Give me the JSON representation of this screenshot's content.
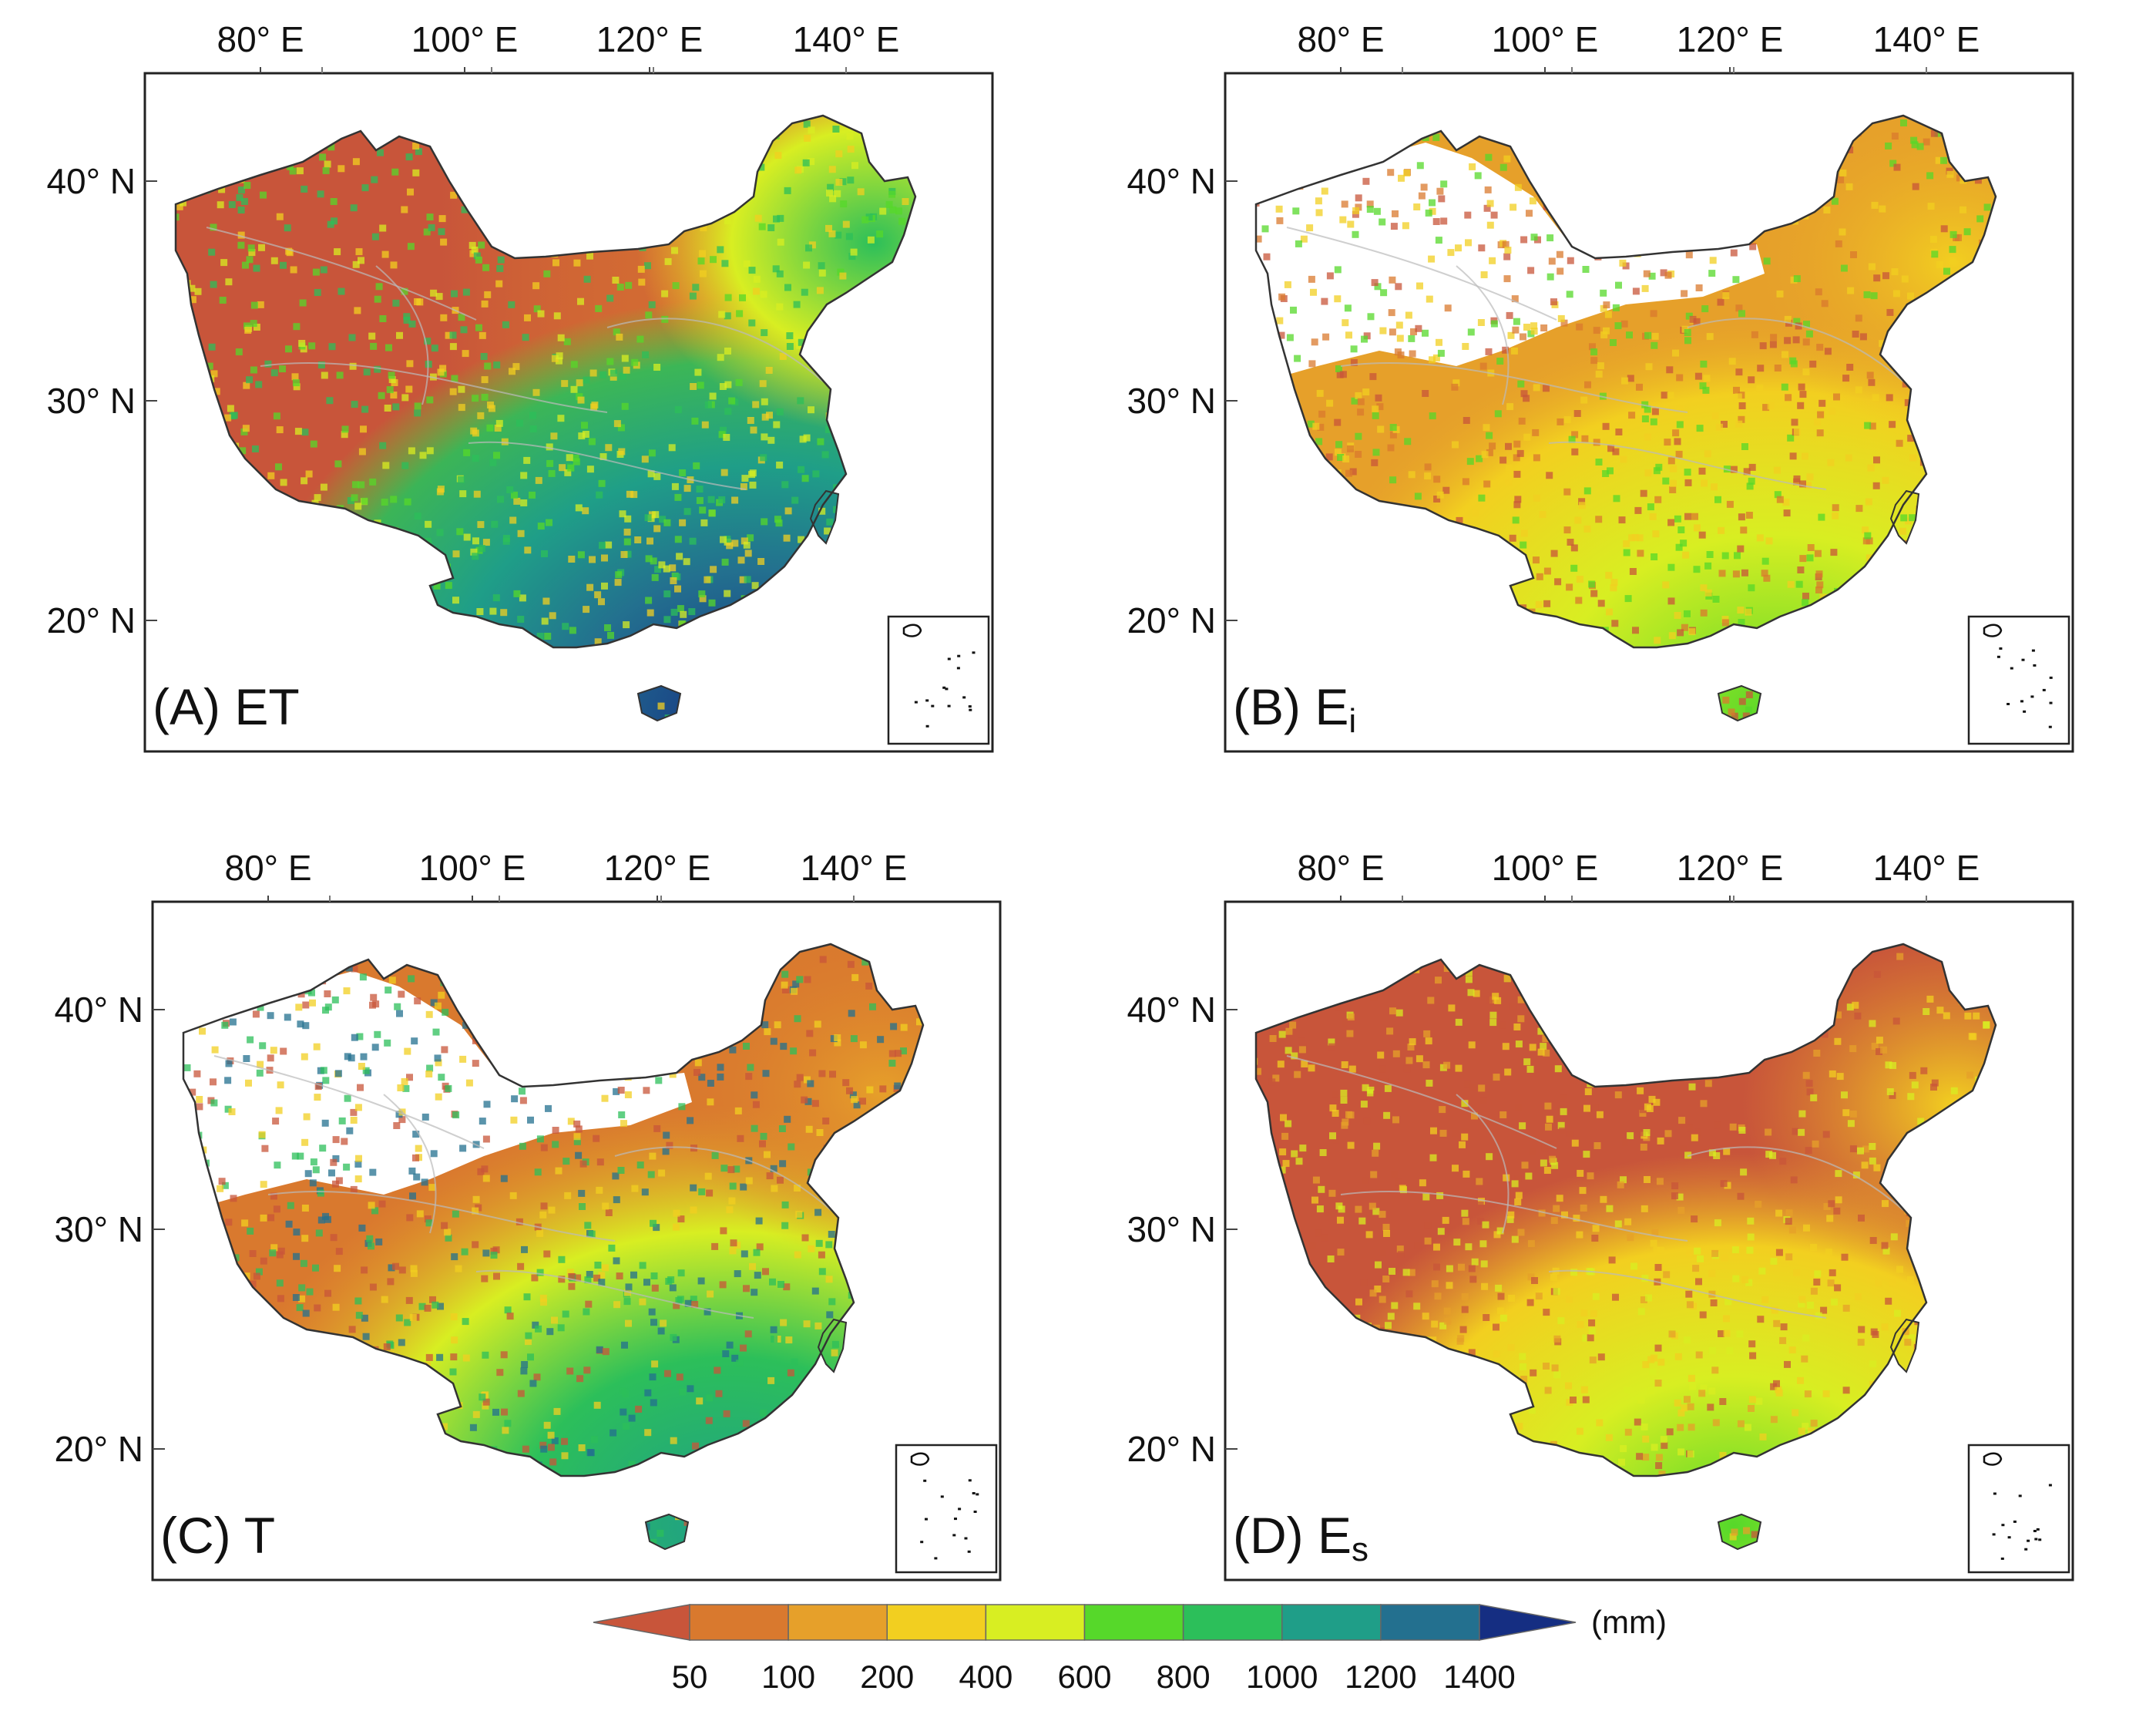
{
  "figure": {
    "lon_ticks": [
      "80° E",
      "100° E",
      "120° E",
      "140° E"
    ],
    "lat_ticks": [
      "40° N",
      "30° N",
      "20° N"
    ],
    "panels": [
      {
        "id": "A",
        "prefix": "(A)",
        "symbol": "ET",
        "subscript": ""
      },
      {
        "id": "B",
        "prefix": "(B)",
        "symbol": "E",
        "subscript": "i"
      },
      {
        "id": "C",
        "prefix": "(C)",
        "symbol": "T",
        "subscript": ""
      },
      {
        "id": "D",
        "prefix": "(D)",
        "symbol": "E",
        "subscript": "s"
      }
    ]
  },
  "colorbar": {
    "unit": "(mm)",
    "ticks": [
      "50",
      "100",
      "200",
      "400",
      "600",
      "800",
      "1000",
      "1200",
      "1400"
    ],
    "colors": [
      "#c8553a",
      "#d9792e",
      "#e6a02a",
      "#f2cf20",
      "#d8ee22",
      "#56d82a",
      "#2cbf5a",
      "#1f9e88",
      "#23708f",
      "#152e82"
    ],
    "extend": "both"
  }
}
